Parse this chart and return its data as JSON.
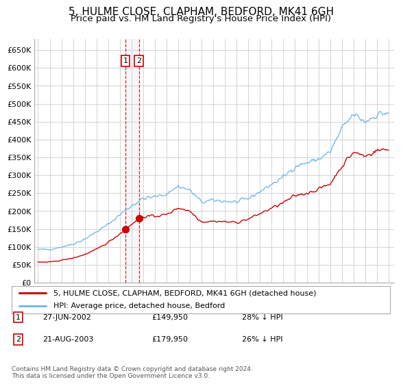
{
  "title": "5, HULME CLOSE, CLAPHAM, BEDFORD, MK41 6GH",
  "subtitle": "Price paid vs. HM Land Registry's House Price Index (HPI)",
  "ylim": [
    0,
    680000
  ],
  "yticks": [
    0,
    50000,
    100000,
    150000,
    200000,
    250000,
    300000,
    350000,
    400000,
    450000,
    500000,
    550000,
    600000,
    650000
  ],
  "ytick_labels": [
    "£0",
    "£50K",
    "£100K",
    "£150K",
    "£200K",
    "£250K",
    "£300K",
    "£350K",
    "£400K",
    "£450K",
    "£500K",
    "£550K",
    "£600K",
    "£650K"
  ],
  "xlim_start": 1994.7,
  "xlim_end": 2025.5,
  "hpi_color": "#74b9e8",
  "property_color": "#cc0000",
  "transaction_line_color": "#cc0000",
  "background_color": "#ffffff",
  "grid_color": "#cccccc",
  "chart_bg": "#ffffff",
  "title_fontsize": 11,
  "subtitle_fontsize": 9.5,
  "transactions": [
    {
      "date": "27-JUN-2002",
      "price": 149950,
      "label": "1",
      "year": 2002.49,
      "pct": "28%",
      "dir": "↓"
    },
    {
      "date": "21-AUG-2003",
      "price": 179950,
      "label": "2",
      "year": 2003.63,
      "pct": "26%",
      "dir": "↓"
    }
  ],
  "legend_property": "5, HULME CLOSE, CLAPHAM, BEDFORD, MK41 6GH (detached house)",
  "legend_hpi": "HPI: Average price, detached house, Bedford",
  "footnote": "Contains HM Land Registry data © Crown copyright and database right 2024.\nThis data is licensed under the Open Government Licence v3.0."
}
